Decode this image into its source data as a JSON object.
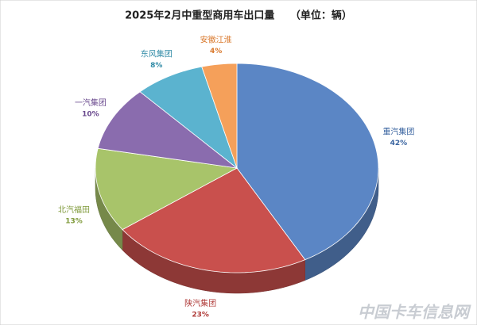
{
  "chart_data": {
    "type": "pie",
    "title": "2025年2月中重型商用车出口量　　（单位：辆）",
    "categories": [
      "重汽集团",
      "陕汽集团",
      "北汽福田",
      "一汽集团",
      "东风集团",
      "安徽江淮"
    ],
    "values": [
      42,
      23,
      13,
      10,
      8,
      4
    ],
    "value_labels": [
      "42%",
      "23%",
      "13%",
      "10%",
      "8%",
      "4%"
    ],
    "colors": [
      "#5b86c5",
      "#c9504d",
      "#a8c46a",
      "#8a6cae",
      "#5bb3cf",
      "#f5a05a"
    ],
    "label_colors": [
      "#3a64a0",
      "#b03c3a",
      "#7f9a3a",
      "#6a4a8e",
      "#2f8aa6",
      "#d9772a"
    ],
    "watermark": "中国卡车信息网"
  }
}
